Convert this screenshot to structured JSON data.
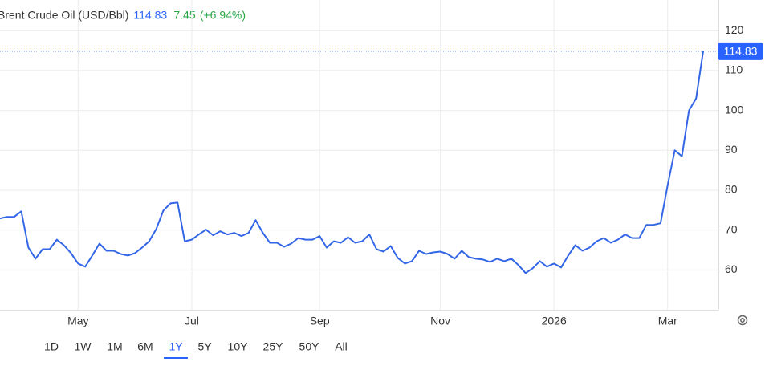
{
  "chart_data": {
    "type": "line",
    "title": "Brent Crude Oil (USD/Bbl)",
    "change": 7.45,
    "change_percent_label": "(+6.94%)",
    "categories": [
      null,
      null,
      null,
      null,
      null,
      null,
      null,
      null,
      null,
      null,
      null,
      "May",
      null,
      null,
      null,
      null,
      null,
      null,
      null,
      null,
      null,
      null,
      null,
      null,
      null,
      null,
      null,
      "Jul",
      null,
      null,
      null,
      null,
      null,
      null,
      null,
      null,
      null,
      null,
      null,
      null,
      null,
      null,
      null,
      null,
      null,
      "Sep",
      null,
      null,
      null,
      null,
      null,
      null,
      null,
      null,
      null,
      null,
      null,
      null,
      null,
      null,
      null,
      null,
      "Nov",
      null,
      null,
      null,
      null,
      null,
      null,
      null,
      null,
      null,
      null,
      null,
      null,
      null,
      null,
      null,
      "2026",
      null,
      null,
      null,
      null,
      null,
      null,
      null,
      null,
      null,
      null,
      null,
      null,
      null,
      null,
      null,
      "Mar",
      null,
      null,
      null,
      null,
      null
    ],
    "series": [
      {
        "name": "Brent Crude Oil",
        "color": "#3366e6",
        "values": [
          72.9,
          73.3,
          73.3,
          74.7,
          65.6,
          62.8,
          65.2,
          65.2,
          67.6,
          66.2,
          64.2,
          61.6,
          60.8,
          63.6,
          66.6,
          64.8,
          64.8,
          64,
          63.6,
          64.2,
          65.6,
          67.2,
          70.3,
          74.9,
          76.7,
          76.9,
          67.2,
          67.6,
          68.9,
          70.1,
          68.7,
          69.7,
          68.9,
          69.3,
          68.5,
          69.3,
          72.5,
          69.3,
          66.8,
          66.8,
          65.8,
          66.6,
          68,
          67.6,
          67.6,
          68.5,
          65.6,
          67.2,
          66.8,
          68.2,
          66.8,
          67.2,
          68.9,
          65.2,
          64.6,
          66,
          63,
          61.6,
          62.2,
          64.8,
          64,
          64.4,
          64.6,
          64,
          62.8,
          64.8,
          63.2,
          62.8,
          62.6,
          62,
          62.8,
          62.2,
          62.8,
          61.2,
          59.2,
          60.4,
          62.2,
          60.8,
          61.6,
          60.6,
          63.6,
          66.2,
          64.8,
          65.6,
          67.2,
          68,
          66.8,
          67.6,
          68.9,
          68,
          68,
          71.3,
          71.3,
          71.7,
          81.3,
          90,
          88.5,
          100,
          103,
          114.83
        ]
      }
    ],
    "ylim": [
      50,
      127.7
    ],
    "yticks": [
      60,
      70,
      80,
      90,
      100,
      110,
      120
    ],
    "grid": true,
    "range_buttons": [
      "1D",
      "1W",
      "1M",
      "6M",
      "1Y",
      "5Y",
      "10Y",
      "25Y",
      "50Y",
      "All"
    ],
    "selected_range_index": 4
  }
}
